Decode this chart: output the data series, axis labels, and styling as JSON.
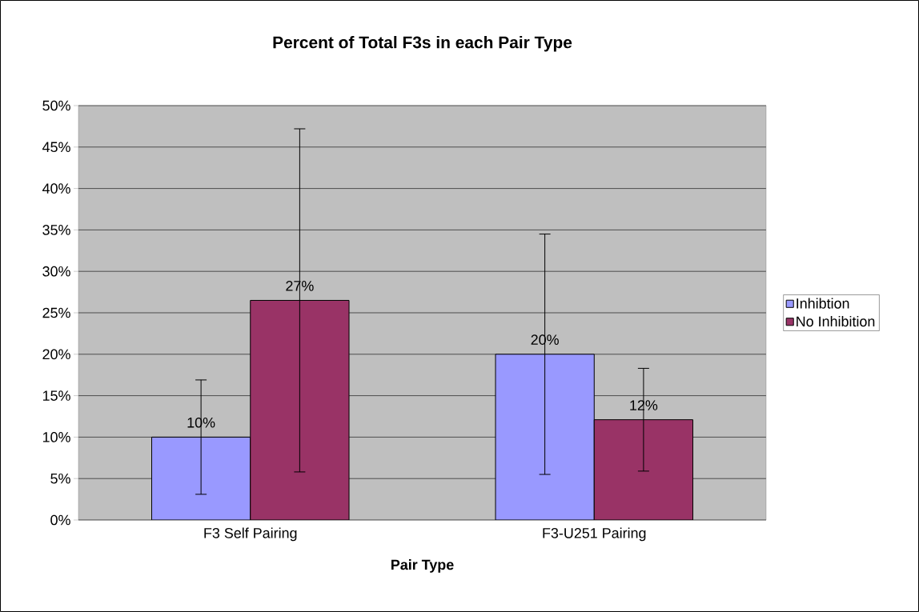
{
  "chart_data": {
    "type": "bar",
    "title": "Percent of Total F3s in each Pair Type",
    "xlabel": "Pair Type",
    "categories": [
      "F3 Self Pairing",
      "F3-U251 Pairing"
    ],
    "series": [
      {
        "name": "Inhibtion",
        "color": "#9999ff",
        "values": [
          10,
          20
        ],
        "errors": [
          6.9,
          14.5
        ],
        "value_labels": [
          "10%",
          "20%"
        ]
      },
      {
        "name": "No Inhibition",
        "color": "#993366",
        "values": [
          26.5,
          12.1
        ],
        "errors": [
          20.7,
          6.2
        ],
        "value_labels": [
          "27%",
          "12%"
        ]
      }
    ],
    "ylim": [
      0,
      50
    ],
    "yticks": [
      {
        "value": 0,
        "label": "0%"
      },
      {
        "value": 5,
        "label": "5%"
      },
      {
        "value": 10,
        "label": "10%"
      },
      {
        "value": 15,
        "label": "15%"
      },
      {
        "value": 20,
        "label": "20%"
      },
      {
        "value": 25,
        "label": "25%"
      },
      {
        "value": 30,
        "label": "30%"
      },
      {
        "value": 35,
        "label": "35%"
      },
      {
        "value": 40,
        "label": "40%"
      },
      {
        "value": 45,
        "label": "45%"
      },
      {
        "value": 50,
        "label": "50%"
      }
    ],
    "grid": "y",
    "legend": "right"
  }
}
